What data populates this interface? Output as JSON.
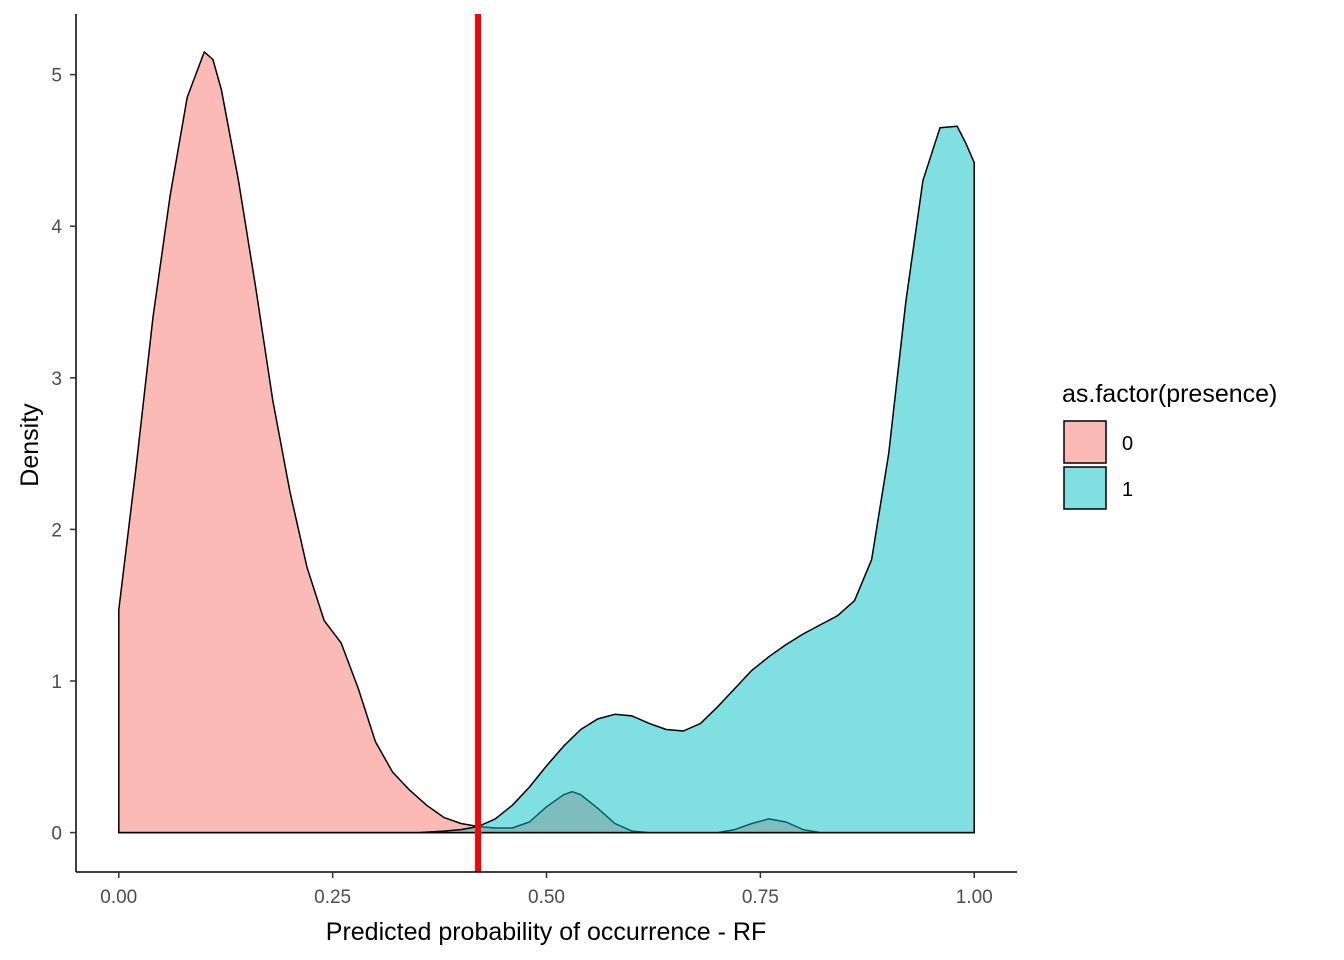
{
  "chart_data": {
    "type": "area",
    "subtype": "density",
    "title": "",
    "xlabel": "Predicted probability of occurrence - RF",
    "ylabel": "Density",
    "xlim": [
      -0.05,
      1.05
    ],
    "ylim": [
      -0.26,
      5.4
    ],
    "x_ticks": [
      0.0,
      0.25,
      0.5,
      0.75,
      1.0
    ],
    "x_tick_labels": [
      "0.00",
      "0.25",
      "0.50",
      "0.75",
      "1.00"
    ],
    "y_ticks": [
      0,
      1,
      2,
      3,
      4,
      5
    ],
    "y_tick_labels": [
      "0",
      "1",
      "2",
      "3",
      "4",
      "5"
    ],
    "grid": false,
    "legend": {
      "title": "as.factor(presence)",
      "position": "right",
      "entries": [
        {
          "label": "0",
          "color": "#F8766D"
        },
        {
          "label": "1",
          "color": "#00BFC4"
        }
      ]
    },
    "vline": {
      "x": 0.42,
      "color": "#FF0000"
    },
    "series": [
      {
        "name": "0",
        "color": "#F8766D",
        "fill_opacity": 0.5,
        "x": [
          0.0,
          0.02,
          0.04,
          0.06,
          0.08,
          0.1,
          0.11,
          0.12,
          0.14,
          0.16,
          0.18,
          0.2,
          0.22,
          0.24,
          0.26,
          0.28,
          0.3,
          0.32,
          0.34,
          0.36,
          0.38,
          0.4,
          0.42,
          0.44,
          0.46,
          0.48,
          0.5,
          0.52,
          0.53,
          0.54,
          0.56,
          0.58,
          0.6,
          0.62,
          0.64,
          0.66,
          0.68,
          0.7,
          0.72,
          0.74,
          0.76,
          0.78,
          0.8,
          0.82,
          0.84,
          0.86,
          0.88,
          0.9,
          0.92,
          0.94,
          0.96,
          0.98,
          1.0
        ],
        "y": [
          1.47,
          2.4,
          3.4,
          4.2,
          4.85,
          5.15,
          5.1,
          4.9,
          4.3,
          3.6,
          2.85,
          2.25,
          1.75,
          1.4,
          1.25,
          0.95,
          0.6,
          0.4,
          0.28,
          0.18,
          0.1,
          0.06,
          0.04,
          0.03,
          0.03,
          0.07,
          0.17,
          0.25,
          0.27,
          0.25,
          0.16,
          0.06,
          0.01,
          0.0,
          0.0,
          0.0,
          0.0,
          0.0,
          0.02,
          0.06,
          0.09,
          0.07,
          0.02,
          0.0,
          0.0,
          0.0,
          0.0,
          0.0,
          0.0,
          0.0,
          0.0,
          0.0,
          0.0
        ]
      },
      {
        "name": "1",
        "color": "#00BFC4",
        "fill_opacity": 0.5,
        "x": [
          0.0,
          0.05,
          0.1,
          0.15,
          0.2,
          0.25,
          0.3,
          0.35,
          0.38,
          0.4,
          0.42,
          0.44,
          0.46,
          0.48,
          0.5,
          0.52,
          0.54,
          0.56,
          0.58,
          0.6,
          0.62,
          0.64,
          0.66,
          0.68,
          0.7,
          0.72,
          0.74,
          0.76,
          0.78,
          0.8,
          0.82,
          0.84,
          0.86,
          0.88,
          0.9,
          0.92,
          0.94,
          0.96,
          0.98,
          0.99,
          1.0
        ],
        "y": [
          0.0,
          0.0,
          0.0,
          0.0,
          0.0,
          0.0,
          0.0,
          0.0,
          0.01,
          0.02,
          0.04,
          0.09,
          0.18,
          0.3,
          0.44,
          0.57,
          0.68,
          0.75,
          0.78,
          0.77,
          0.72,
          0.68,
          0.67,
          0.72,
          0.83,
          0.95,
          1.07,
          1.16,
          1.24,
          1.31,
          1.37,
          1.43,
          1.53,
          1.8,
          2.5,
          3.5,
          4.3,
          4.65,
          4.66,
          4.55,
          4.42
        ]
      }
    ]
  }
}
